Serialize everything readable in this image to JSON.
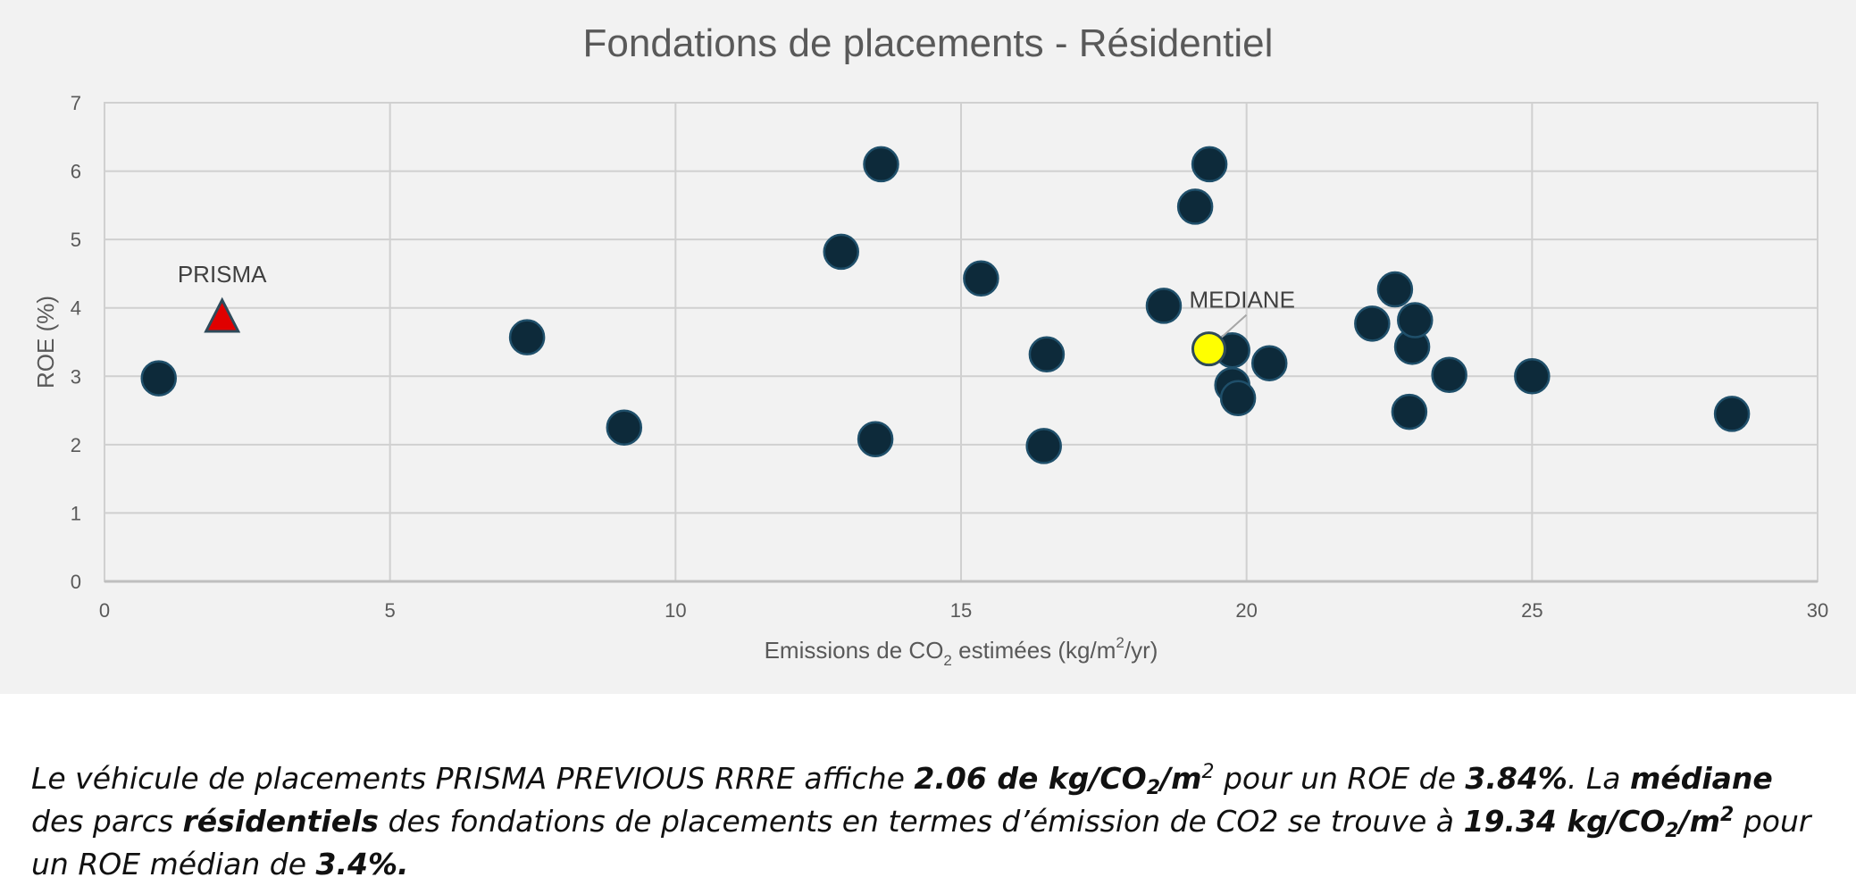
{
  "chart_data": {
    "type": "scatter",
    "title": "Fondations de placements - Résidentiel",
    "xlabel": {
      "pre": "Emissions de CO",
      "sub": "2",
      "mid": " estimées (kg/m",
      "sup": "2",
      "post": "/yr)"
    },
    "ylabel": "ROE (%)",
    "xlim": [
      0,
      30
    ],
    "ylim": [
      0,
      7
    ],
    "xticks": [
      0,
      5,
      10,
      15,
      20,
      25,
      30
    ],
    "yticks": [
      0,
      1,
      2,
      3,
      4,
      5,
      6,
      7
    ],
    "grid": true,
    "series": [
      {
        "name": "Fondations de placements",
        "marker": "circle",
        "color": "#0d2a3a",
        "points": [
          {
            "x": 0.95,
            "y": 2.97
          },
          {
            "x": 7.4,
            "y": 3.57
          },
          {
            "x": 9.1,
            "y": 2.25
          },
          {
            "x": 12.9,
            "y": 4.82
          },
          {
            "x": 13.5,
            "y": 2.08
          },
          {
            "x": 13.6,
            "y": 6.1
          },
          {
            "x": 15.35,
            "y": 4.43
          },
          {
            "x": 16.45,
            "y": 1.98
          },
          {
            "x": 16.5,
            "y": 3.32
          },
          {
            "x": 18.55,
            "y": 4.03
          },
          {
            "x": 19.1,
            "y": 5.48
          },
          {
            "x": 19.35,
            "y": 6.1
          },
          {
            "x": 19.75,
            "y": 3.38
          },
          {
            "x": 19.75,
            "y": 2.87
          },
          {
            "x": 19.85,
            "y": 2.68
          },
          {
            "x": 20.4,
            "y": 3.19
          },
          {
            "x": 22.2,
            "y": 3.77
          },
          {
            "x": 22.6,
            "y": 4.27
          },
          {
            "x": 22.85,
            "y": 2.48
          },
          {
            "x": 22.9,
            "y": 3.43
          },
          {
            "x": 22.95,
            "y": 3.82
          },
          {
            "x": 23.55,
            "y": 3.02
          },
          {
            "x": 25.0,
            "y": 3.0
          },
          {
            "x": 28.5,
            "y": 2.45
          }
        ]
      },
      {
        "name": "PRISMA",
        "marker": "triangle",
        "color": "#e00000",
        "points": [
          {
            "x": 2.06,
            "y": 3.84,
            "label": "PRISMA"
          }
        ]
      },
      {
        "name": "MEDIANE",
        "marker": "circle",
        "color": "#ffff00",
        "points": [
          {
            "x": 19.34,
            "y": 3.4,
            "label": "MEDIANE"
          }
        ]
      }
    ]
  },
  "caption": [
    {
      "t": "Le véhicule de placements PRISMA PREVIOUS RRRE affiche "
    },
    {
      "t": "2.06 de kg/CO",
      "b": true
    },
    {
      "t": "2",
      "b": true,
      "sub": true
    },
    {
      "t": "/m",
      "b": true
    },
    {
      "t": "2",
      "sup": true
    },
    {
      "t": " pour un ROE de "
    },
    {
      "t": "3.84%",
      "b": true
    },
    {
      "t": ". La "
    },
    {
      "t": "médiane",
      "b": true
    },
    {
      "t": " des parcs "
    },
    {
      "t": "résidentiels",
      "b": true
    },
    {
      "t": " des fondations de placements en termes d’émission de CO2 se trouve à "
    },
    {
      "t": "19.34 kg/CO",
      "b": true
    },
    {
      "t": "2",
      "b": true,
      "sub": true
    },
    {
      "t": "/m",
      "b": true
    },
    {
      "t": "2",
      "b": true,
      "sup": true
    },
    {
      "t": " pour un ROE médian de "
    },
    {
      "t": "3.4%.",
      "b": true
    }
  ]
}
